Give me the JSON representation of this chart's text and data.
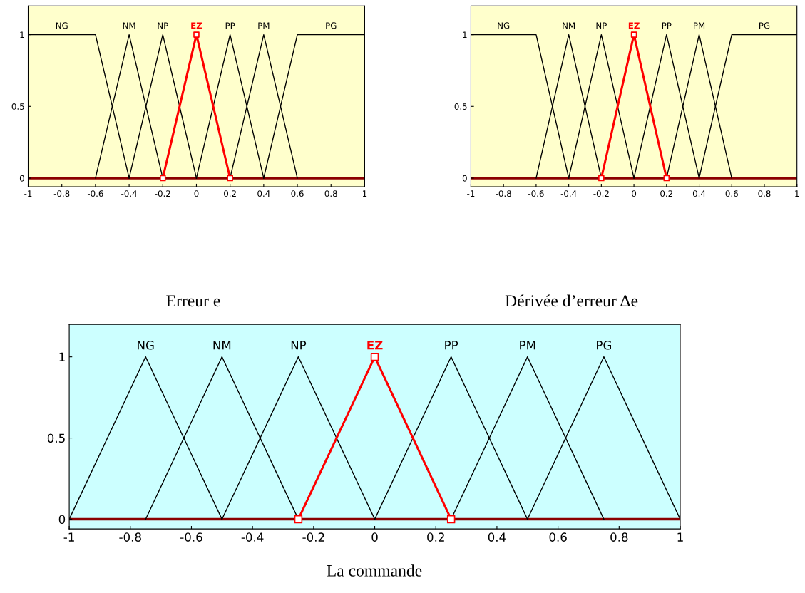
{
  "chart_data": [
    {
      "type": "line",
      "xlim": [
        -1,
        1
      ],
      "ylim": [
        -0.06,
        1.2
      ],
      "xticks": [
        -1,
        -0.8,
        -0.6,
        -0.4,
        -0.2,
        0,
        0.2,
        0.4,
        0.6,
        0.8,
        1
      ],
      "yticks": [
        0,
        0.5,
        1
      ],
      "annotations": [
        "Erreur e"
      ],
      "ref_lines": [
        {
          "axis": "y",
          "value": 0,
          "color": "#8b0000"
        }
      ],
      "series": [
        {
          "name": "NG",
          "color": "#000000",
          "x": [
            -1,
            -0.6,
            -0.4
          ],
          "values": [
            1,
            1,
            0
          ]
        },
        {
          "name": "NM",
          "color": "#000000",
          "x": [
            -0.6,
            -0.4,
            -0.2
          ],
          "values": [
            0,
            1,
            0
          ]
        },
        {
          "name": "NP",
          "color": "#000000",
          "x": [
            -0.4,
            -0.2,
            0
          ],
          "values": [
            0,
            1,
            0
          ]
        },
        {
          "name": "EZ",
          "color": "#ff0000",
          "marker": "square",
          "x": [
            -0.2,
            0,
            0.2
          ],
          "values": [
            0,
            1,
            0
          ]
        },
        {
          "name": "PP",
          "color": "#000000",
          "x": [
            0,
            0.2,
            0.4
          ],
          "values": [
            0,
            1,
            0
          ]
        },
        {
          "name": "PM",
          "color": "#000000",
          "x": [
            0.2,
            0.4,
            0.6
          ],
          "values": [
            0,
            1,
            0
          ]
        },
        {
          "name": "PG",
          "color": "#000000",
          "x": [
            0.4,
            0.6,
            1
          ],
          "values": [
            0,
            1,
            1
          ]
        }
      ]
    },
    {
      "type": "line",
      "xlim": [
        -1,
        1
      ],
      "ylim": [
        -0.06,
        1.2
      ],
      "xticks": [
        -1,
        -0.8,
        -0.6,
        -0.4,
        -0.2,
        0,
        0.2,
        0.4,
        0.6,
        0.8,
        1
      ],
      "yticks": [
        0,
        0.5,
        1
      ],
      "annotations": [
        "Dérivée d’erreur Δe"
      ],
      "ref_lines": [
        {
          "axis": "y",
          "value": 0,
          "color": "#8b0000"
        }
      ],
      "series": [
        {
          "name": "NG",
          "color": "#000000",
          "x": [
            -1,
            -0.6,
            -0.4
          ],
          "values": [
            1,
            1,
            0
          ]
        },
        {
          "name": "NM",
          "color": "#000000",
          "x": [
            -0.6,
            -0.4,
            -0.2
          ],
          "values": [
            0,
            1,
            0
          ]
        },
        {
          "name": "NP",
          "color": "#000000",
          "x": [
            -0.4,
            -0.2,
            0
          ],
          "values": [
            0,
            1,
            0
          ]
        },
        {
          "name": "EZ",
          "color": "#ff0000",
          "marker": "square",
          "x": [
            -0.2,
            0,
            0.2
          ],
          "values": [
            0,
            1,
            0
          ]
        },
        {
          "name": "PP",
          "color": "#000000",
          "x": [
            0,
            0.2,
            0.4
          ],
          "values": [
            0,
            1,
            0
          ]
        },
        {
          "name": "PM",
          "color": "#000000",
          "x": [
            0.2,
            0.4,
            0.6
          ],
          "values": [
            0,
            1,
            0
          ]
        },
        {
          "name": "PG",
          "color": "#000000",
          "x": [
            0.4,
            0.6,
            1
          ],
          "values": [
            0,
            1,
            1
          ]
        }
      ]
    },
    {
      "type": "line",
      "xlim": [
        -1,
        1
      ],
      "ylim": [
        -0.06,
        1.2
      ],
      "xticks": [
        -1,
        -0.8,
        -0.6,
        -0.4,
        -0.2,
        0,
        0.2,
        0.4,
        0.6,
        0.8,
        1
      ],
      "yticks": [
        0,
        0.5,
        1
      ],
      "annotations": [
        "La commande"
      ],
      "ref_lines": [
        {
          "axis": "y",
          "value": 0,
          "color": "#8b0000"
        }
      ],
      "series": [
        {
          "name": "NG",
          "color": "#000000",
          "x": [
            -1,
            -0.75,
            -0.5
          ],
          "values": [
            0,
            1,
            0
          ]
        },
        {
          "name": "NM",
          "color": "#000000",
          "x": [
            -0.75,
            -0.5,
            -0.25
          ],
          "values": [
            0,
            1,
            0
          ]
        },
        {
          "name": "NP",
          "color": "#000000",
          "x": [
            -0.5,
            -0.25,
            0
          ],
          "values": [
            0,
            1,
            0
          ]
        },
        {
          "name": "EZ",
          "color": "#ff0000",
          "marker": "square",
          "x": [
            -0.25,
            0,
            0.25
          ],
          "values": [
            0,
            1,
            0
          ]
        },
        {
          "name": "PP",
          "color": "#000000",
          "x": [
            0,
            0.25,
            0.5
          ],
          "values": [
            0,
            1,
            0
          ]
        },
        {
          "name": "PM",
          "color": "#000000",
          "x": [
            0.25,
            0.5,
            0.75
          ],
          "values": [
            0,
            1,
            0
          ]
        },
        {
          "name": "PG",
          "color": "#000000",
          "x": [
            0.5,
            0.75,
            1
          ],
          "values": [
            0,
            1,
            0
          ]
        }
      ]
    }
  ]
}
